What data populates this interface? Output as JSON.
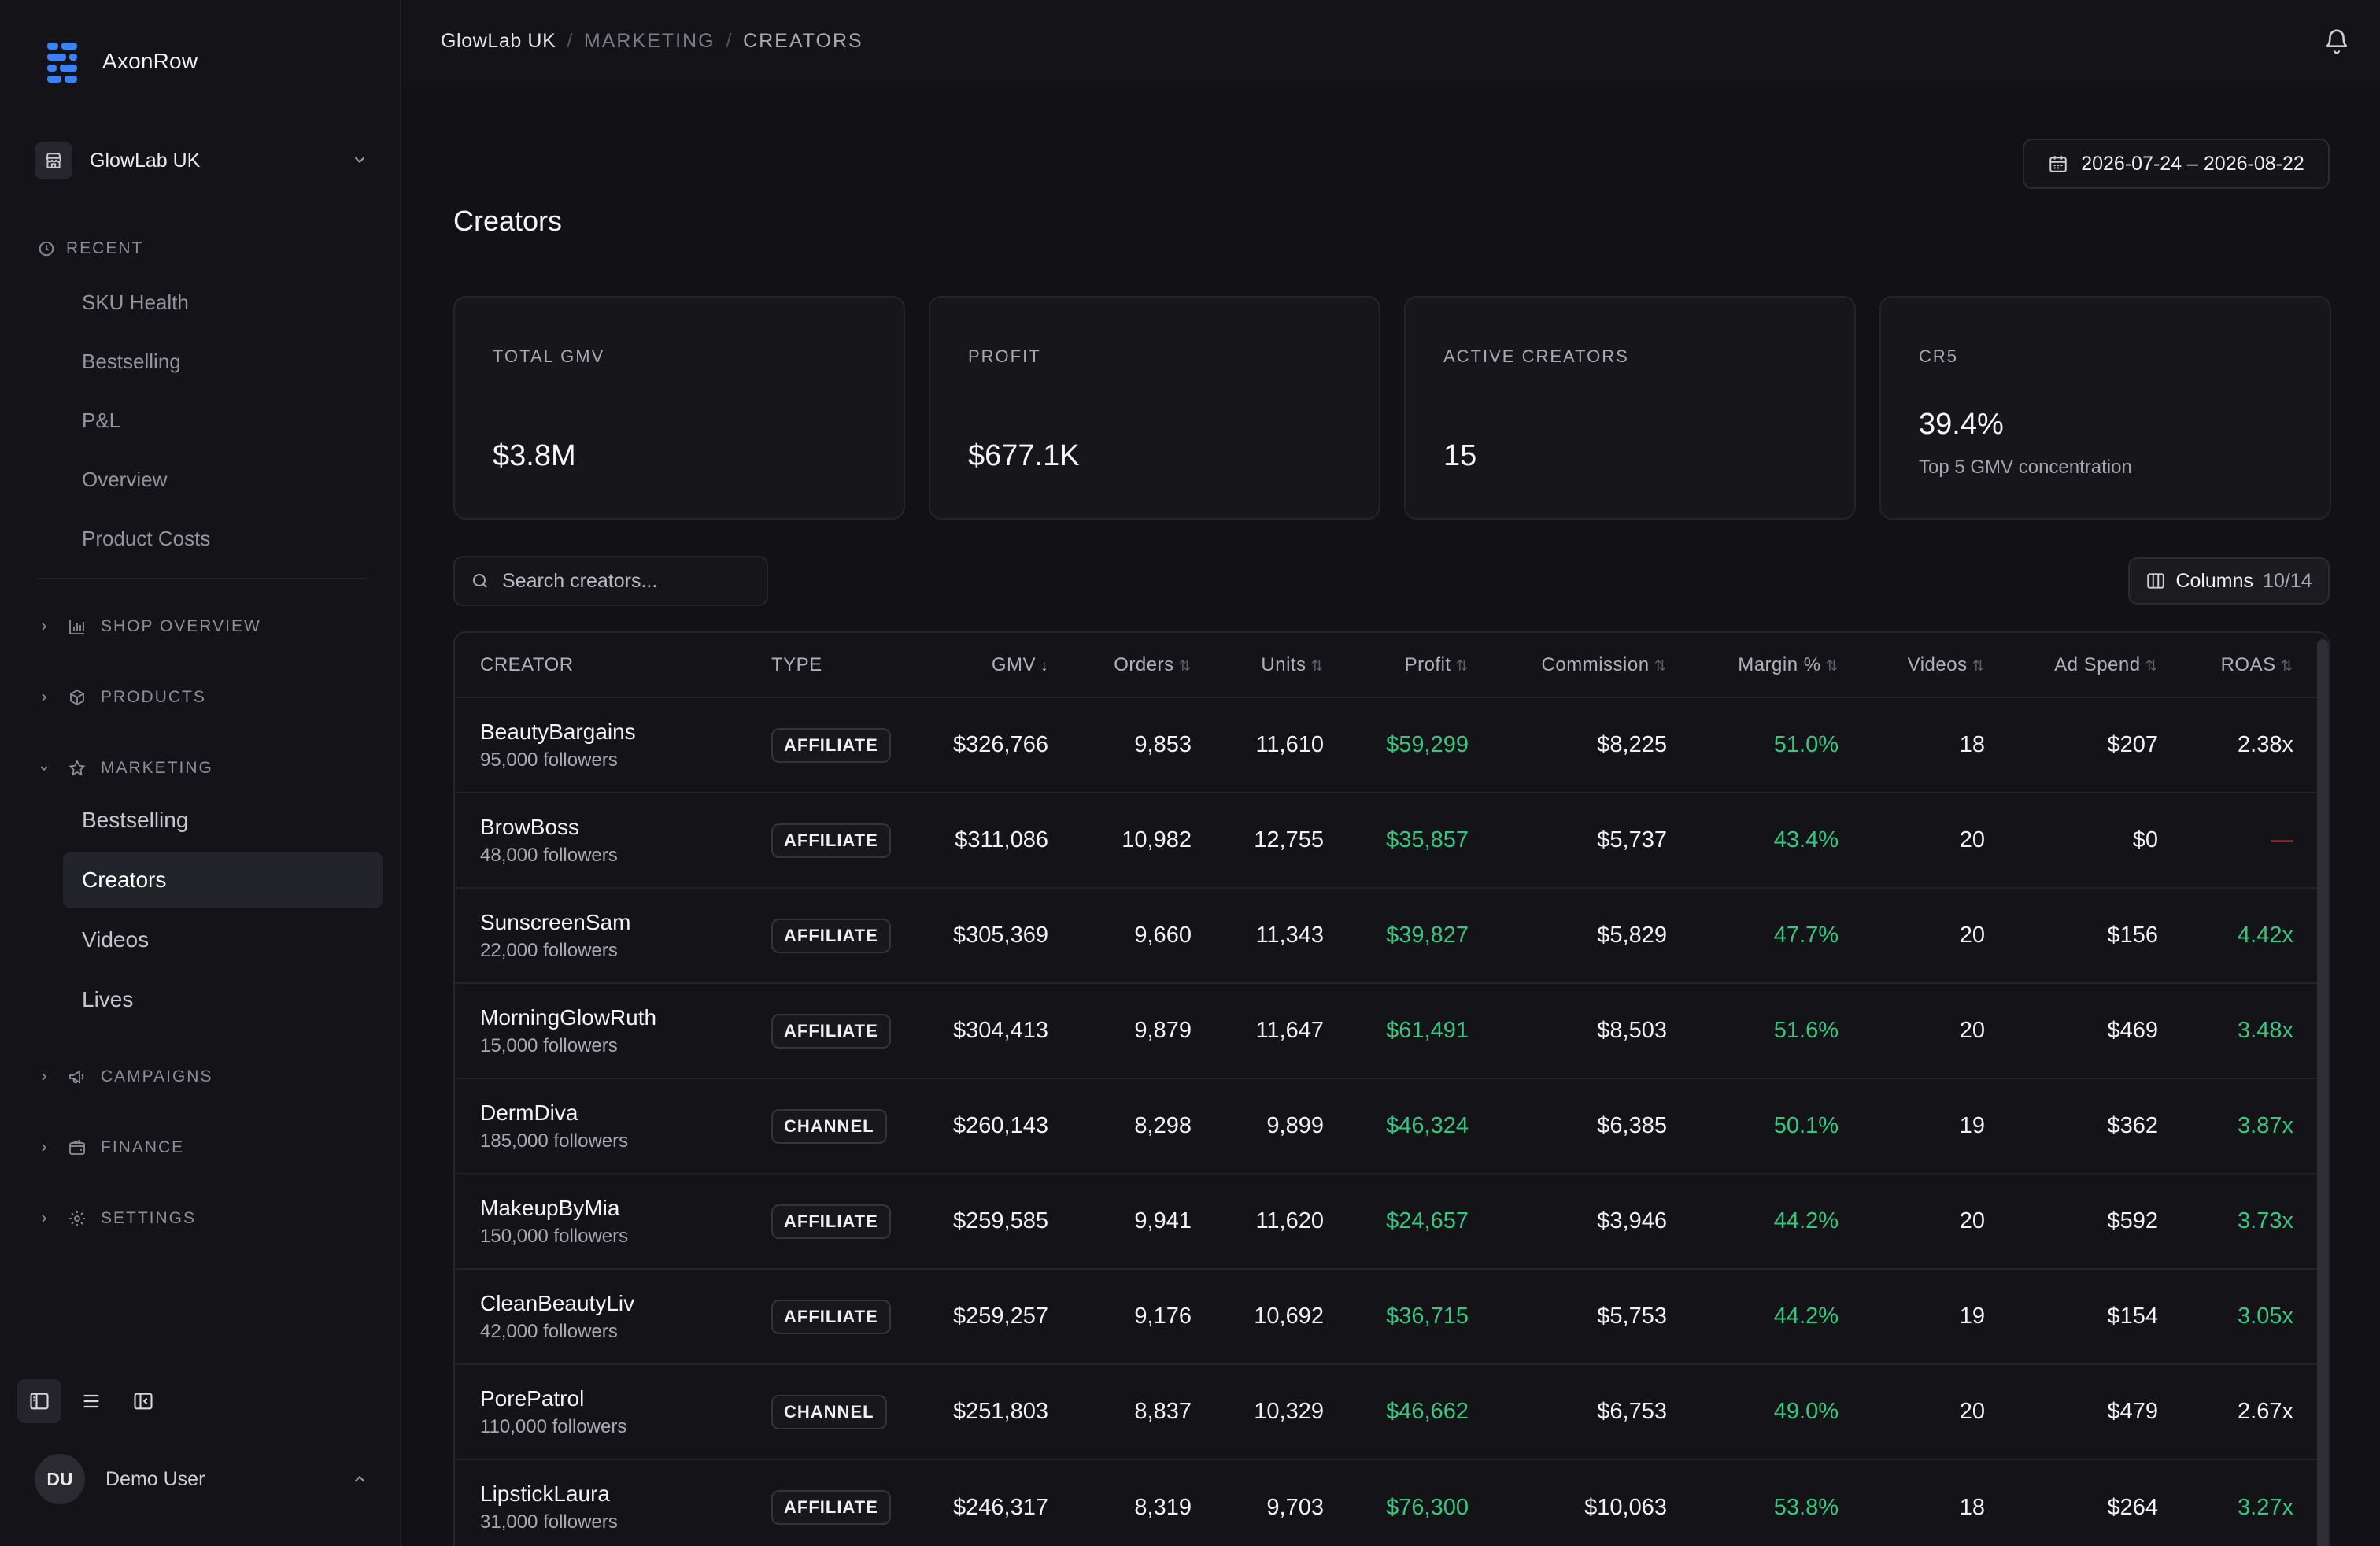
{
  "app": {
    "name": "AxonRow",
    "shop": "GlowLab UK"
  },
  "sidebar": {
    "recent_label": "RECENT",
    "recent": [
      "SKU Health",
      "Bestselling",
      "P&L",
      "Overview",
      "Product Costs"
    ],
    "groups": {
      "shop_overview": "SHOP OVERVIEW",
      "products": "PRODUCTS",
      "marketing": "MARKETING",
      "campaigns": "CAMPAIGNS",
      "finance": "FINANCE",
      "settings": "SETTINGS"
    },
    "marketing_items": [
      "Bestselling",
      "Creators",
      "Videos",
      "Lives"
    ],
    "active_item": "Creators"
  },
  "user": {
    "initials": "DU",
    "name": "Demo User"
  },
  "breadcrumb": {
    "shop": "GlowLab UK",
    "section": "MARKETING",
    "page": "CREATORS",
    "separator": "/"
  },
  "date_range": "2026-07-24 – 2026-08-22",
  "page_title": "Creators",
  "kpis": [
    {
      "label": "TOTAL GMV",
      "value": "$3.8M"
    },
    {
      "label": "PROFIT",
      "value": "$677.1K"
    },
    {
      "label": "ACTIVE CREATORS",
      "value": "15"
    },
    {
      "label": "CR5",
      "value": "39.4%",
      "sub": "Top 5 GMV concentration"
    }
  ],
  "search": {
    "placeholder": "Search creators..."
  },
  "columns_button": {
    "label": "Columns",
    "count": "10/14"
  },
  "table": {
    "headers": [
      "CREATOR",
      "TYPE",
      "GMV",
      "Orders",
      "Units",
      "Profit",
      "Commission",
      "Margin %",
      "Videos",
      "Ad Spend",
      "ROAS"
    ],
    "rows": [
      {
        "name": "BeautyBargains",
        "followers": "95,000 followers",
        "type": "AFFILIATE",
        "gmv": "$326,766",
        "orders": "9,853",
        "units": "11,610",
        "profit": "$59,299",
        "commission": "$8,225",
        "margin": "51.0%",
        "videos": "18",
        "ad_spend": "$207",
        "roas": "2.38x",
        "roas_status": "neutral"
      },
      {
        "name": "BrowBoss",
        "followers": "48,000 followers",
        "type": "AFFILIATE",
        "gmv": "$311,086",
        "orders": "10,982",
        "units": "12,755",
        "profit": "$35,857",
        "commission": "$5,737",
        "margin": "43.4%",
        "videos": "20",
        "ad_spend": "$0",
        "roas": "—",
        "roas_status": "none"
      },
      {
        "name": "SunscreenSam",
        "followers": "22,000 followers",
        "type": "AFFILIATE",
        "gmv": "$305,369",
        "orders": "9,660",
        "units": "11,343",
        "profit": "$39,827",
        "commission": "$5,829",
        "margin": "47.7%",
        "videos": "20",
        "ad_spend": "$156",
        "roas": "4.42x",
        "roas_status": "good"
      },
      {
        "name": "MorningGlowRuth",
        "followers": "15,000 followers",
        "type": "AFFILIATE",
        "gmv": "$304,413",
        "orders": "9,879",
        "units": "11,647",
        "profit": "$61,491",
        "commission": "$8,503",
        "margin": "51.6%",
        "videos": "20",
        "ad_spend": "$469",
        "roas": "3.48x",
        "roas_status": "good"
      },
      {
        "name": "DermDiva",
        "followers": "185,000 followers",
        "type": "CHANNEL",
        "gmv": "$260,143",
        "orders": "8,298",
        "units": "9,899",
        "profit": "$46,324",
        "commission": "$6,385",
        "margin": "50.1%",
        "videos": "19",
        "ad_spend": "$362",
        "roas": "3.87x",
        "roas_status": "good"
      },
      {
        "name": "MakeupByMia",
        "followers": "150,000 followers",
        "type": "AFFILIATE",
        "gmv": "$259,585",
        "orders": "9,941",
        "units": "11,620",
        "profit": "$24,657",
        "commission": "$3,946",
        "margin": "44.2%",
        "videos": "20",
        "ad_spend": "$592",
        "roas": "3.73x",
        "roas_status": "good"
      },
      {
        "name": "CleanBeautyLiv",
        "followers": "42,000 followers",
        "type": "AFFILIATE",
        "gmv": "$259,257",
        "orders": "9,176",
        "units": "10,692",
        "profit": "$36,715",
        "commission": "$5,753",
        "margin": "44.2%",
        "videos": "19",
        "ad_spend": "$154",
        "roas": "3.05x",
        "roas_status": "good"
      },
      {
        "name": "PorePatrol",
        "followers": "110,000 followers",
        "type": "CHANNEL",
        "gmv": "$251,803",
        "orders": "8,837",
        "units": "10,329",
        "profit": "$46,662",
        "commission": "$6,753",
        "margin": "49.0%",
        "videos": "20",
        "ad_spend": "$479",
        "roas": "2.67x",
        "roas_status": "neutral"
      },
      {
        "name": "LipstickLaura",
        "followers": "31,000 followers",
        "type": "AFFILIATE",
        "gmv": "$246,317",
        "orders": "8,319",
        "units": "9,703",
        "profit": "$76,300",
        "commission": "$10,063",
        "margin": "53.8%",
        "videos": "18",
        "ad_spend": "$264",
        "roas": "3.27x",
        "roas_status": "good"
      }
    ]
  },
  "colors": {
    "positive": "#36c77f",
    "negative": "#e5484d",
    "brand": "#3b82f6"
  }
}
